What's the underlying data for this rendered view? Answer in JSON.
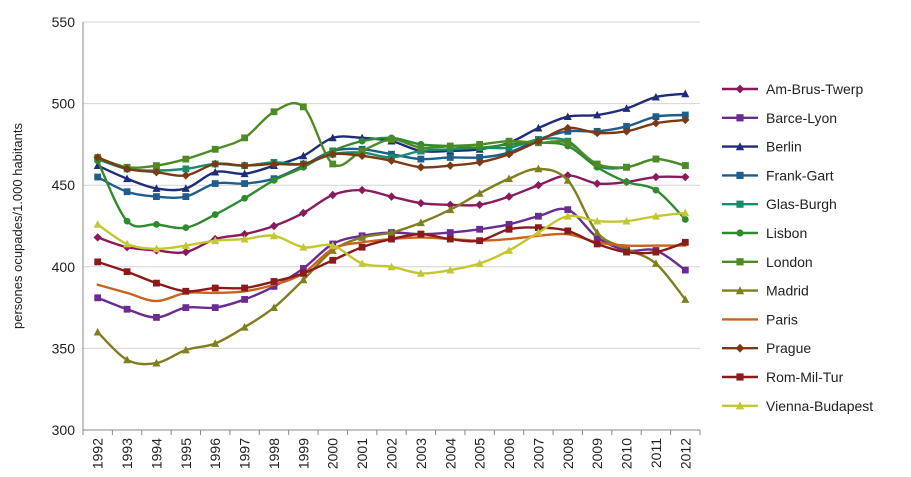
{
  "chart_data": {
    "type": "line",
    "title": "",
    "xlabel": "",
    "ylabel": "persones ocupades/1.000 habitants",
    "ylim": [
      300,
      550
    ],
    "yticks": [
      300,
      350,
      400,
      450,
      500,
      550
    ],
    "grid": "horizontal-major",
    "legend_position": "right",
    "x": [
      "1992",
      "1993",
      "1994",
      "1995",
      "1996",
      "1997",
      "1998",
      "1999",
      "2000",
      "2001",
      "2002",
      "2003",
      "2004",
      "2005",
      "2006",
      "2007",
      "2008",
      "2009",
      "2010",
      "2011",
      "2012"
    ],
    "series": [
      {
        "name": "Am-Brus-Twerp",
        "color": "#8B1A5C",
        "marker": "diamond",
        "values": [
          418,
          412,
          410,
          409,
          417,
          420,
          425,
          433,
          444,
          447,
          443,
          439,
          438,
          438,
          443,
          450,
          456,
          451,
          452,
          455,
          455
        ]
      },
      {
        "name": "Barce-Lyon",
        "color": "#6A2C91",
        "marker": "square",
        "values": [
          381,
          374,
          369,
          375,
          375,
          380,
          388,
          399,
          414,
          419,
          421,
          420,
          421,
          423,
          426,
          431,
          435,
          418,
          410,
          410,
          398
        ]
      },
      {
        "name": "Berlin",
        "color": "#1F2C7A",
        "marker": "triangle",
        "values": [
          462,
          454,
          448,
          448,
          458,
          457,
          462,
          468,
          479,
          479,
          477,
          471,
          471,
          472,
          476,
          485,
          492,
          493,
          497,
          504,
          506
        ]
      },
      {
        "name": "Frank-Gart",
        "color": "#1F5E8C",
        "marker": "square",
        "values": [
          455,
          446,
          443,
          443,
          451,
          451,
          454,
          462,
          471,
          472,
          469,
          466,
          467,
          467,
          470,
          478,
          483,
          483,
          486,
          492,
          493
        ]
      },
      {
        "name": "Glas-Burgh",
        "color": "#1A8C6E",
        "marker": "square",
        "values": [
          466,
          460,
          459,
          460,
          463,
          462,
          464,
          463,
          469,
          470,
          467,
          471,
          472,
          473,
          473,
          478,
          477,
          462,
          461,
          466,
          462
        ]
      },
      {
        "name": "Lisbon",
        "color": "#2E8B2E",
        "marker": "circle",
        "values": [
          465,
          428,
          426,
          424,
          432,
          442,
          453,
          461,
          471,
          477,
          479,
          475,
          474,
          473,
          475,
          476,
          474,
          461,
          452,
          447,
          429
        ]
      },
      {
        "name": "London",
        "color": "#4E8B26",
        "marker": "square",
        "values": [
          467,
          461,
          462,
          466,
          472,
          479,
          495,
          498,
          463,
          471,
          478,
          473,
          474,
          475,
          477,
          476,
          476,
          463,
          461,
          466,
          462
        ]
      },
      {
        "name": "Madrid",
        "color": "#7F7F1F",
        "marker": "triangle",
        "values": [
          360,
          343,
          341,
          349,
          353,
          363,
          375,
          392,
          410,
          418,
          421,
          427,
          435,
          445,
          454,
          460,
          453,
          421,
          411,
          402,
          380
        ]
      },
      {
        "name": "Paris",
        "color": "#C8641E",
        "marker": "none",
        "values": [
          389,
          384,
          379,
          384,
          384,
          385,
          389,
          396,
          411,
          415,
          417,
          418,
          417,
          416,
          417,
          419,
          420,
          415,
          413,
          413,
          413
        ]
      },
      {
        "name": "Prague",
        "color": "#7B3A14",
        "marker": "diamond",
        "values": [
          467,
          460,
          458,
          456,
          463,
          462,
          463,
          463,
          469,
          468,
          465,
          461,
          462,
          464,
          469,
          477,
          485,
          482,
          483,
          488,
          490
        ]
      },
      {
        "name": "Rom-Mil-Tur",
        "color": "#8B1A1A",
        "marker": "square",
        "values": [
          403,
          397,
          390,
          385,
          387,
          387,
          391,
          396,
          404,
          412,
          417,
          420,
          417,
          416,
          423,
          424,
          422,
          414,
          409,
          409,
          415
        ]
      },
      {
        "name": "Vienna-Budapest",
        "color": "#C2C832",
        "marker": "triangle",
        "values": [
          426,
          414,
          411,
          413,
          416,
          417,
          419,
          412,
          413,
          402,
          400,
          396,
          398,
          402,
          410,
          421,
          431,
          428,
          428,
          431,
          433
        ]
      }
    ]
  }
}
